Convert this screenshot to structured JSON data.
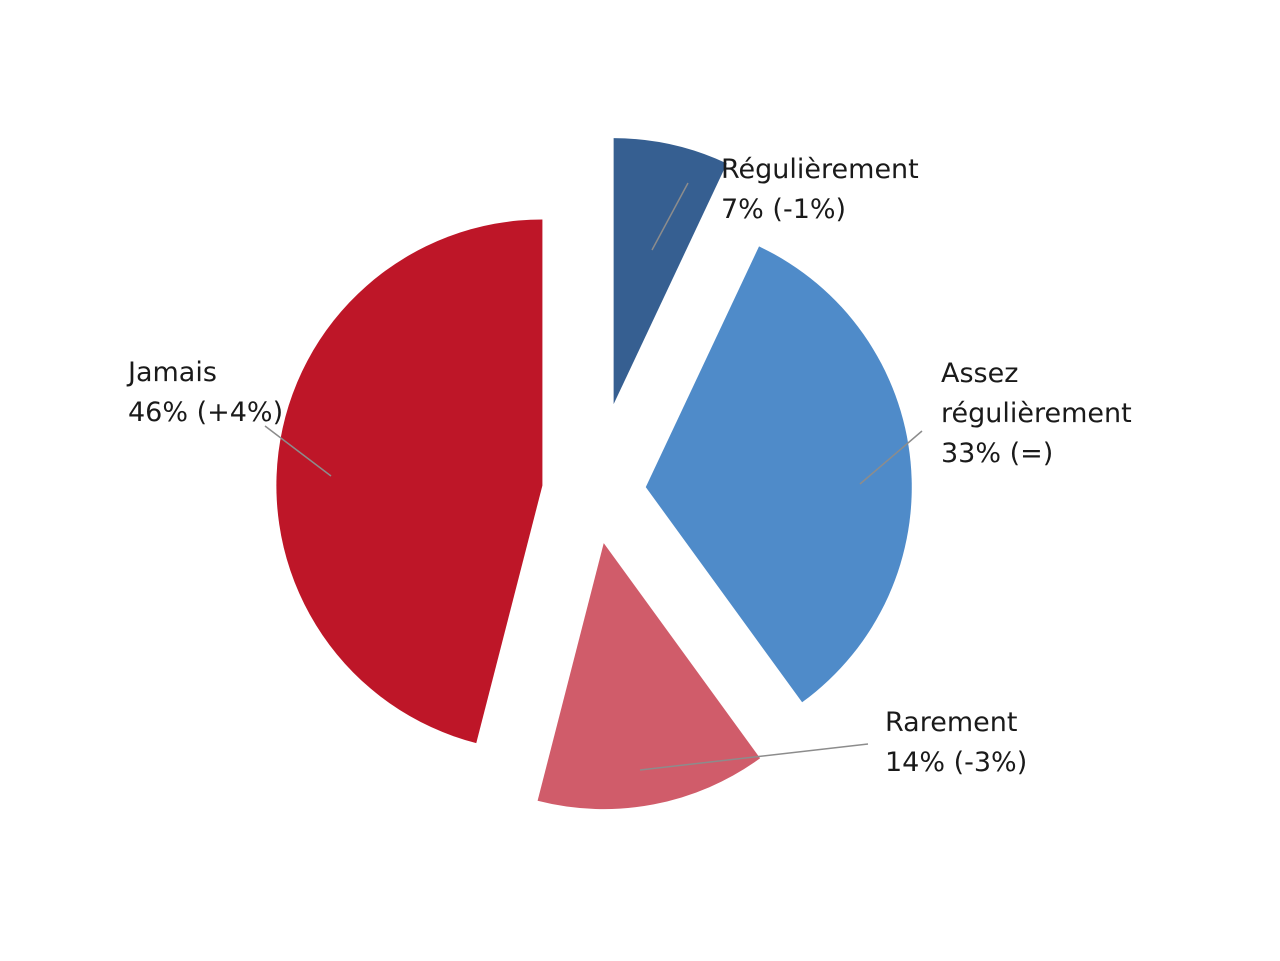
{
  "chart_data": {
    "type": "pie",
    "exploded": true,
    "categories": [
      "Régulièrement",
      "Assez régulièrement",
      "Rarement",
      "Jamais"
    ],
    "values": [
      7,
      33,
      14,
      46
    ],
    "value_labels": [
      "7%",
      "33%",
      "14%",
      "46%"
    ],
    "change_labels": [
      "(-1%)",
      "(=)",
      "(-3%)",
      "(+4%)"
    ],
    "label_lines": [
      [
        "Régulièrement",
        "7% (-1%)"
      ],
      [
        "Assez",
        "régulièrement",
        "33% (=)"
      ],
      [
        "Rarement",
        "14% (-3%)"
      ],
      [
        "Jamais",
        "46% (+4%)"
      ]
    ],
    "colors": [
      "#365f91",
      "#4f8bc9",
      "#d05c6a",
      "#be1628"
    ],
    "legend": "none"
  }
}
